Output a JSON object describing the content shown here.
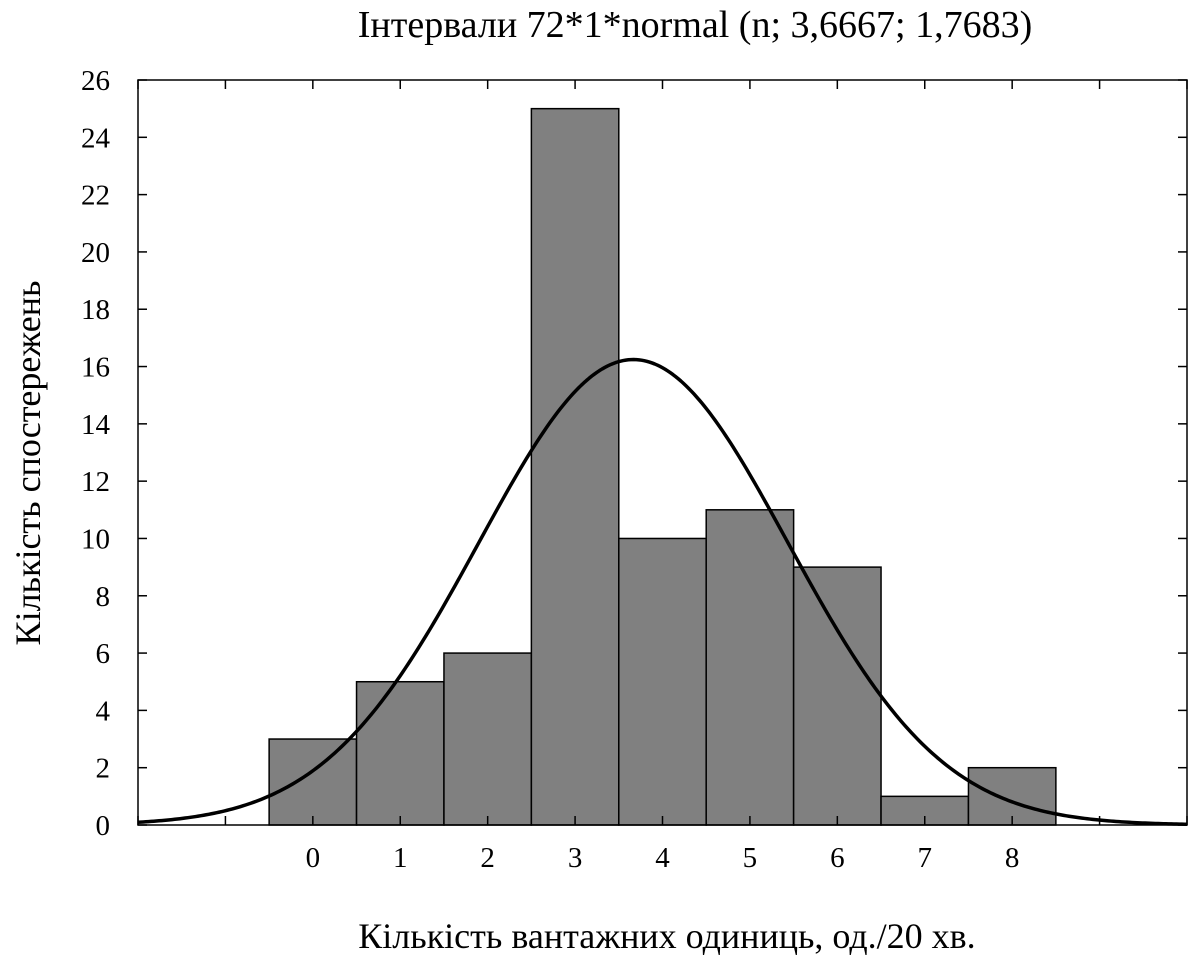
{
  "chart_data": {
    "type": "bar",
    "title": "Інтервали 72*1*normal (n; 3,6667; 1,7683)",
    "xlabel": "Кількість вантажних одиниць, од./20 хв.",
    "ylabel": "Кількість спостережень",
    "categories": [
      "0",
      "1",
      "2",
      "3",
      "4",
      "5",
      "6",
      "7",
      "8"
    ],
    "x_values": [
      0,
      1,
      2,
      3,
      4,
      5,
      6,
      7,
      8
    ],
    "values": [
      3,
      5,
      6,
      25,
      10,
      11,
      9,
      1,
      2
    ],
    "y_ticks": [
      0,
      2,
      4,
      6,
      8,
      10,
      12,
      14,
      16,
      18,
      20,
      22,
      24,
      26
    ],
    "xlim": [
      -2,
      10
    ],
    "ylim": [
      0,
      26
    ],
    "fitted_curve": {
      "distribution": "normal",
      "n": 72,
      "mean": 3.6667,
      "sd": 1.7683
    },
    "grid": false,
    "legend": "none",
    "colors": {
      "bar_fill": "#808080",
      "bar_stroke": "#000000",
      "curve": "#000000",
      "axis": "#000000"
    }
  }
}
